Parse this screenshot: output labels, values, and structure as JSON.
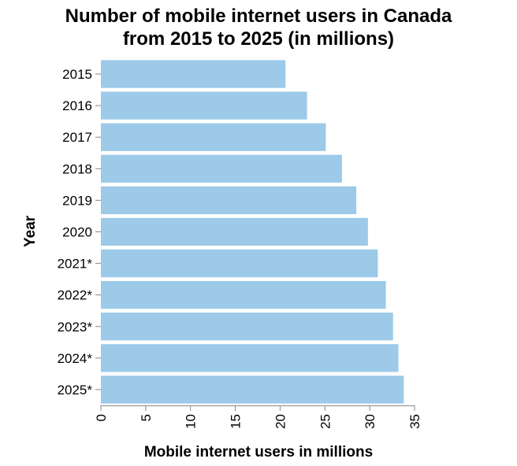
{
  "chart_data": {
    "type": "bar",
    "orientation": "horizontal",
    "title_lines": [
      "Number of mobile internet users in Canada",
      "from 2015 to 2025 (in millions)"
    ],
    "xlabel": "Mobile internet users in millions",
    "ylabel": "Year",
    "categories": [
      "2015",
      "2016",
      "2017",
      "2018",
      "2019",
      "2020",
      "2021*",
      "2022*",
      "2023*",
      "2024*",
      "2025*"
    ],
    "values": [
      20.6,
      23.0,
      25.1,
      26.9,
      28.5,
      29.8,
      30.9,
      31.8,
      32.6,
      33.2,
      33.8
    ],
    "xlim": [
      0,
      35
    ],
    "xticks": [
      0,
      5,
      10,
      15,
      20,
      25,
      30,
      35
    ],
    "grid": false,
    "bar_color": "#9ccae8"
  }
}
